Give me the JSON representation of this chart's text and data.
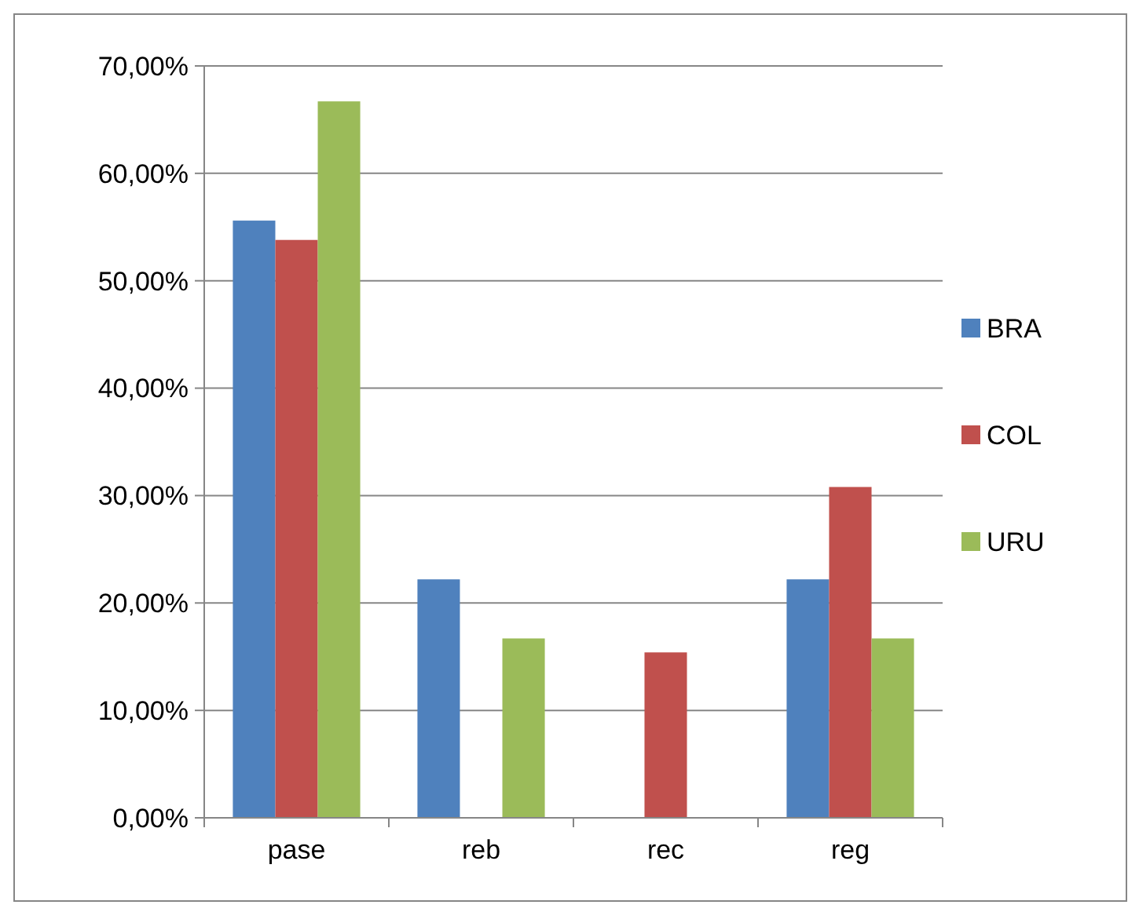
{
  "chart_data": {
    "type": "bar",
    "categories": [
      "pase",
      "reb",
      "rec",
      "reg"
    ],
    "series": [
      {
        "name": "BRA",
        "color": "#4f81bd",
        "values": [
          55.6,
          22.2,
          0,
          22.2
        ]
      },
      {
        "name": "COL",
        "color": "#c0504d",
        "values": [
          53.8,
          0,
          15.4,
          30.8
        ]
      },
      {
        "name": "URU",
        "color": "#9bbb59",
        "values": [
          66.7,
          16.7,
          0,
          16.7
        ]
      }
    ],
    "ylim": [
      0,
      70
    ],
    "yticks": [
      {
        "value": 0,
        "label": "0,00%"
      },
      {
        "value": 10,
        "label": "10,00%"
      },
      {
        "value": 20,
        "label": "20,00%"
      },
      {
        "value": 30,
        "label": "30,00%"
      },
      {
        "value": 40,
        "label": "40,00%"
      },
      {
        "value": 50,
        "label": "50,00%"
      },
      {
        "value": 60,
        "label": "60,00%"
      },
      {
        "value": 70,
        "label": "70,00%"
      }
    ],
    "grid": "y",
    "legend": "right"
  }
}
